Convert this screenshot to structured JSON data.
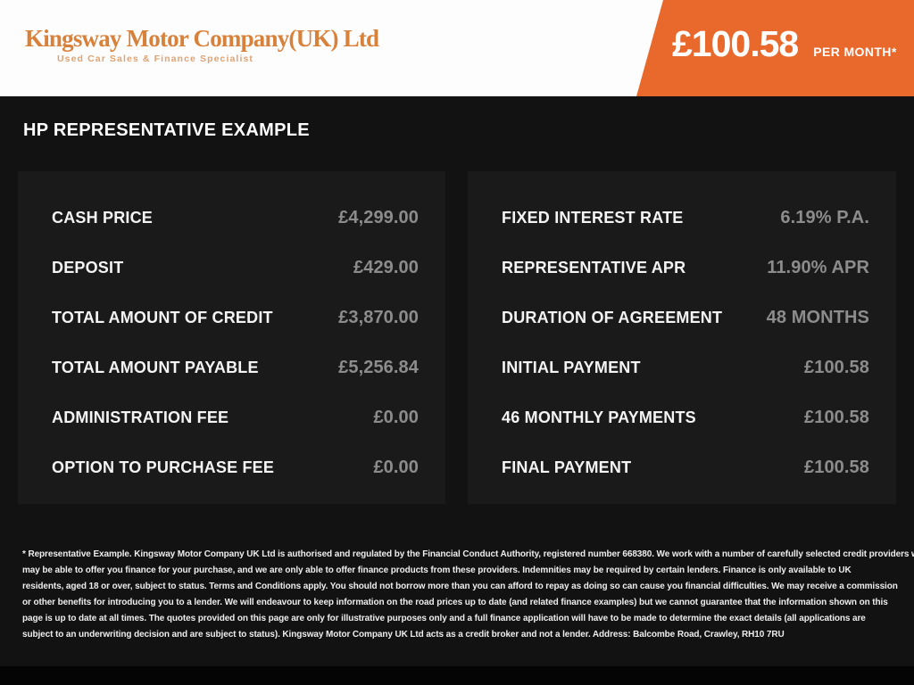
{
  "header": {
    "logo": {
      "title": "Kingsway Motor Company(UK) Ltd",
      "tagline": "Used Car Sales & Finance Specialist"
    },
    "price_banner": {
      "amount": "£100.58",
      "period": "PER MONTH*"
    }
  },
  "section_title": "HP REPRESENTATIVE EXAMPLE",
  "panels": {
    "left": {
      "rows": [
        {
          "label": "CASH PRICE",
          "value": "£4,299.00"
        },
        {
          "label": "DEPOSIT",
          "value": "£429.00"
        },
        {
          "label": "TOTAL AMOUNT OF CREDIT",
          "value": "£3,870.00"
        },
        {
          "label": "TOTAL AMOUNT PAYABLE",
          "value": "£5,256.84"
        },
        {
          "label": "ADMINISTRATION FEE",
          "value": "£0.00"
        },
        {
          "label": "OPTION TO PURCHASE FEE",
          "value": "£0.00"
        }
      ]
    },
    "right": {
      "rows": [
        {
          "label": "FIXED INTEREST RATE",
          "value": "6.19% P.A."
        },
        {
          "label": "REPRESENTATIVE APR",
          "value": "11.90% APR"
        },
        {
          "label": "DURATION OF AGREEMENT",
          "value": "48 MONTHS"
        },
        {
          "label": "INITIAL PAYMENT",
          "value": "£100.58"
        },
        {
          "label": "46 MONTHLY PAYMENTS",
          "value": "£100.58"
        },
        {
          "label": "FINAL PAYMENT",
          "value": "£100.58"
        }
      ]
    }
  },
  "disclaimer": {
    "lines": [
      "* Representative Example. Kingsway Motor Company UK Ltd is authorised and regulated by the Financial Conduct Authority, registered number 668380. We work with a number of carefully selected credit providers who",
      "may be able to offer you finance for your purchase, and we are only able to offer finance products from these providers. Indemnities may be required by certain lenders. Finance is only available to UK",
      "residents, aged 18 or over, subject to status. Terms and Conditions apply. You should not borrow more than you can afford to repay as doing so can cause you financial difficulties. We may receive a commission",
      "or other benefits for introducing you to a lender. We will endeavour to keep information on the road prices up to date (and related finance examples) but we cannot guarantee that the information shown on this",
      "page is up to date at all times. The quotes provided on this page are only for illustrative purposes only and a full finance application will have to be made to determine the exact details (all applications are",
      "subject to an underwriting decision and are subject to status). Kingsway Motor Company UK Ltd acts as a credit broker and not a lender. Address: Balcombe Road, Crawley, RH10 7RU"
    ]
  },
  "colors": {
    "accent_orange": "#E9682C",
    "logo_orange": "#D8813B",
    "tagline_orange": "#DFA272",
    "page_dark": "#121212",
    "panel_dark": "#1A1A1A",
    "label_white": "#F4F4F4",
    "value_gray": "#8C8C8C",
    "header_white": "#FDFDFD"
  }
}
